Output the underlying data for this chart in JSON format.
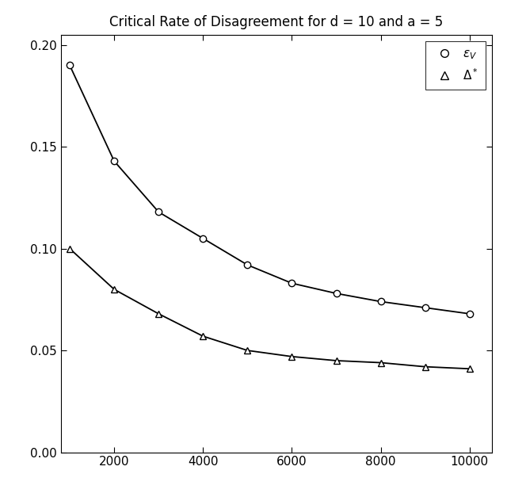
{
  "title": "Critical Rate of Disagreement for d = 10 and a = 5",
  "x_values": [
    1000,
    2000,
    3000,
    4000,
    5000,
    6000,
    7000,
    8000,
    9000,
    10000
  ],
  "eps_V": [
    0.19,
    0.143,
    0.118,
    0.105,
    0.092,
    0.083,
    0.078,
    0.074,
    0.071,
    0.068
  ],
  "delta_star": [
    0.1,
    0.08,
    0.068,
    0.057,
    0.05,
    0.047,
    0.045,
    0.044,
    0.042,
    0.041
  ],
  "xlim": [
    800,
    10500
  ],
  "ylim": [
    0.0,
    0.205
  ],
  "xticks": [
    2000,
    4000,
    6000,
    8000,
    10000
  ],
  "yticks": [
    0.0,
    0.05,
    0.1,
    0.15,
    0.2
  ],
  "background_color": "#ffffff",
  "line_color": "#000000",
  "title_fontsize": 12,
  "marker_size": 6
}
